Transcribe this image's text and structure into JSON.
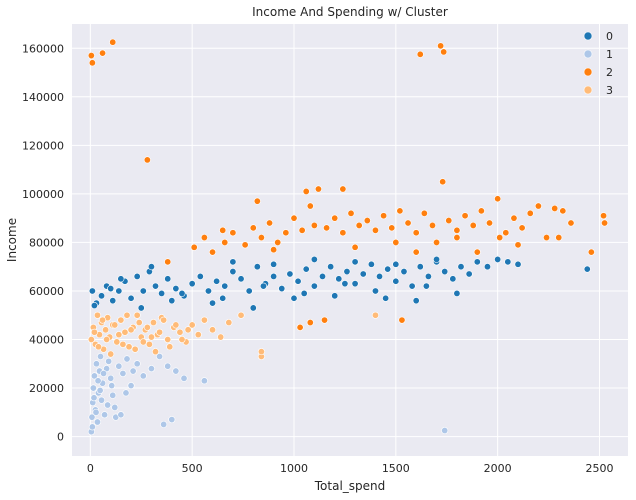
{
  "chart_data": {
    "type": "scatter",
    "title": "Income And Spending w/ Cluster",
    "xlabel": "Total_spend",
    "ylabel": "Income",
    "xlim": [
      -90,
      2640
    ],
    "ylim": [
      -8000,
      170000
    ],
    "xticks": [
      0,
      500,
      1000,
      1500,
      2000,
      2500
    ],
    "xtick_labels": [
      "0",
      "500",
      "1000",
      "1500",
      "2000",
      "2500"
    ],
    "yticks": [
      0,
      20000,
      40000,
      60000,
      80000,
      100000,
      120000,
      140000,
      160000
    ],
    "ytick_labels": [
      "0",
      "20000",
      "40000",
      "60000",
      "80000",
      "100000",
      "120000",
      "140000",
      "160000"
    ],
    "grid": true,
    "legend_position": "top-right",
    "series": [
      {
        "name": "0",
        "color": "#1f77b4",
        "x": [
          10,
          30,
          55,
          80,
          110,
          140,
          170,
          200,
          230,
          260,
          290,
          320,
          350,
          380,
          420,
          460,
          500,
          540,
          580,
          620,
          660,
          700,
          740,
          780,
          820,
          860,
          900,
          940,
          980,
          1020,
          1060,
          1100,
          1140,
          1180,
          1220,
          1260,
          1300,
          1340,
          1380,
          1420,
          1460,
          1500,
          1540,
          1580,
          1620,
          1660,
          1700,
          1740,
          1780,
          1820,
          1860,
          1900,
          1950,
          2000,
          2050,
          2100,
          2440,
          20,
          100,
          250,
          400,
          600,
          800,
          1000,
          1200,
          1400,
          1600,
          1800,
          300,
          700,
          900,
          1100,
          1300,
          1500,
          1700,
          150,
          450,
          650,
          850,
          1050,
          1250,
          1450,
          1650
        ],
        "y": [
          60000,
          55000,
          58000,
          62000,
          56000,
          60000,
          64000,
          57000,
          66000,
          60000,
          68000,
          62000,
          59000,
          65000,
          61000,
          58000,
          63000,
          66000,
          60000,
          64000,
          62000,
          68000,
          65000,
          60000,
          70000,
          63000,
          66000,
          61000,
          67000,
          64000,
          69000,
          62000,
          66000,
          70000,
          65000,
          68000,
          63000,
          67000,
          71000,
          66000,
          69000,
          64000,
          68000,
          62000,
          70000,
          66000,
          72000,
          68000,
          65000,
          70000,
          67000,
          72000,
          70000,
          73000,
          72000,
          71000,
          69000,
          54000,
          61000,
          53000,
          56000,
          55000,
          53000,
          57000,
          58000,
          60000,
          56000,
          59000,
          70000,
          72000,
          71000,
          73000,
          72000,
          71000,
          73000,
          65000,
          59000,
          57000,
          62000,
          59000,
          63000,
          57000,
          62000
        ]
      },
      {
        "name": "1",
        "color": "#aec7e8",
        "x": [
          5,
          8,
          12,
          15,
          20,
          25,
          30,
          35,
          40,
          45,
          50,
          55,
          60,
          70,
          80,
          90,
          100,
          110,
          120,
          140,
          160,
          180,
          200,
          230,
          260,
          300,
          340,
          380,
          420,
          460,
          560,
          1740,
          10,
          18,
          28,
          38,
          48,
          65,
          85,
          105,
          125,
          150,
          175,
          210,
          360,
          400
        ],
        "y": [
          2000,
          8000,
          14000,
          20000,
          25000,
          11000,
          30000,
          6000,
          18000,
          27000,
          33000,
          15000,
          22000,
          9000,
          28000,
          31000,
          24000,
          17000,
          12000,
          29000,
          26000,
          32000,
          21000,
          30000,
          25000,
          28000,
          33000,
          29000,
          27000,
          24000,
          23000,
          2500,
          4000,
          16000,
          10000,
          23000,
          19000,
          26000,
          13000,
          21000,
          8000,
          9000,
          18000,
          27000,
          5000,
          7000
        ]
      },
      {
        "name": "2",
        "color": "#ff7f0e",
        "x": [
          5,
          10,
          60,
          110,
          280,
          1620,
          1720,
          1735,
          510,
          560,
          600,
          660,
          700,
          760,
          800,
          840,
          880,
          920,
          960,
          1000,
          1040,
          1080,
          1100,
          1120,
          1160,
          1200,
          1240,
          1280,
          1320,
          1360,
          1400,
          1440,
          1480,
          1520,
          1560,
          1600,
          1640,
          1680,
          1730,
          1760,
          1800,
          1840,
          1880,
          1920,
          1960,
          2000,
          2040,
          2080,
          2120,
          2160,
          2200,
          2240,
          2280,
          2320,
          2360,
          2460,
          2520,
          2525,
          820,
          1060,
          1240,
          1030,
          1080,
          1150,
          1530,
          1600,
          1700,
          1900,
          2010,
          650,
          900,
          1300,
          1500,
          1800,
          2100,
          2300,
          380
        ],
        "y": [
          157000,
          154000,
          158000,
          162500,
          114000,
          157500,
          161000,
          158500,
          78000,
          82000,
          76000,
          80000,
          84000,
          79000,
          86000,
          82000,
          88000,
          80000,
          84000,
          90000,
          85000,
          95000,
          87000,
          102000,
          86000,
          90000,
          84000,
          92000,
          87000,
          89000,
          85000,
          91000,
          86000,
          93000,
          88000,
          84000,
          92000,
          87000,
          105000,
          89000,
          85000,
          91000,
          87000,
          93000,
          88000,
          98000,
          84000,
          90000,
          86000,
          92000,
          95000,
          82000,
          94000,
          93000,
          88000,
          76000,
          91000,
          88000,
          97000,
          101000,
          102000,
          45000,
          47000,
          48000,
          48000,
          76000,
          80000,
          76000,
          82000,
          85000,
          77000,
          78000,
          80000,
          82000,
          79000,
          82000,
          72000
        ]
      },
      {
        "name": "3",
        "color": "#ffbb78",
        "x": [
          5,
          15,
          25,
          35,
          45,
          55,
          65,
          75,
          85,
          95,
          110,
          130,
          150,
          170,
          190,
          210,
          230,
          250,
          270,
          290,
          310,
          330,
          350,
          380,
          410,
          440,
          470,
          500,
          530,
          560,
          600,
          640,
          680,
          740,
          840,
          840,
          1400,
          20,
          40,
          60,
          80,
          100,
          120,
          140,
          160,
          180,
          200,
          220,
          240,
          260,
          280,
          300,
          320,
          340,
          360,
          390,
          420,
          450,
          480
        ],
        "y": [
          40000,
          45000,
          38000,
          50000,
          42000,
          47000,
          36000,
          44000,
          49000,
          41000,
          46000,
          39000,
          48000,
          43000,
          37000,
          45000,
          50000,
          41000,
          44000,
          38000,
          47000,
          42000,
          49000,
          40000,
          45000,
          43000,
          39000,
          46000,
          42000,
          48000,
          44000,
          41000,
          47000,
          50000,
          33000,
          35000,
          50000,
          43000,
          37000,
          48000,
          40000,
          34000,
          46000,
          42000,
          38000,
          50000,
          44000,
          36000,
          47000,
          39000,
          45000,
          41000,
          35000,
          43000,
          48000,
          37000,
          46000,
          40000,
          44000
        ]
      }
    ]
  }
}
